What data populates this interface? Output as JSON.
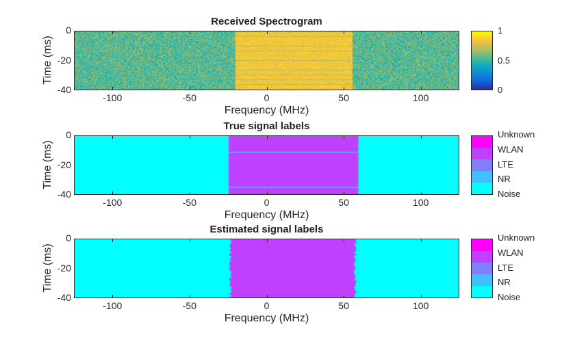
{
  "chart_data": [
    {
      "type": "heatmap",
      "title": "Received Spectrogram",
      "xlabel": "Frequency (MHz)",
      "ylabel": "Time (ms)",
      "xlim": [
        -125,
        125
      ],
      "ylim": [
        -40,
        0
      ],
      "xticks": [
        "-100",
        "-50",
        "0",
        "50",
        "100"
      ],
      "yticks": [
        "0",
        "-20",
        "-40"
      ],
      "colorbar": {
        "ticks": [
          "1",
          "0.5",
          "0"
        ],
        "colormap": "parula",
        "range": [
          0,
          1
        ]
      },
      "signal_band_mhz": [
        -21,
        55
      ],
      "signal_level": 0.85,
      "noise_level": 0.55
    },
    {
      "type": "heatmap",
      "title": "True signal labels",
      "xlabel": "Frequency (MHz)",
      "ylabel": "Time (ms)",
      "xlim": [
        -125,
        125
      ],
      "ylim": [
        -40,
        0
      ],
      "xticks": [
        "-100",
        "-50",
        "0",
        "50",
        "100"
      ],
      "yticks": [
        "0",
        "-20",
        "-40"
      ],
      "classes": [
        "Unknown",
        "WLAN",
        "LTE",
        "NR",
        "Noise"
      ],
      "class_colors": [
        "#FF00FF",
        "#BF40FF",
        "#8080FF",
        "#40BFFF",
        "#00FFFF"
      ],
      "regions": [
        {
          "class": "WLAN",
          "freq_mhz": [
            -25,
            59
          ],
          "time_ms": [
            -40,
            0
          ]
        }
      ],
      "noise_time_gaps_ms": [
        -11,
        -35
      ]
    },
    {
      "type": "heatmap",
      "title": "Estimated signal labels",
      "xlabel": "Frequency (MHz)",
      "ylabel": "Time (ms)",
      "xlim": [
        -125,
        125
      ],
      "ylim": [
        -40,
        0
      ],
      "xticks": [
        "-100",
        "-50",
        "0",
        "50",
        "100"
      ],
      "yticks": [
        "0",
        "-20",
        "-40"
      ],
      "classes": [
        "Unknown",
        "WLAN",
        "LTE",
        "NR",
        "Noise"
      ],
      "class_colors": [
        "#FF00FF",
        "#BF40FF",
        "#8080FF",
        "#40BFFF",
        "#00FFFF"
      ],
      "regions": [
        {
          "class": "WLAN",
          "freq_mhz": [
            -24,
            57
          ],
          "time_ms": [
            -40,
            0
          ]
        }
      ]
    }
  ]
}
